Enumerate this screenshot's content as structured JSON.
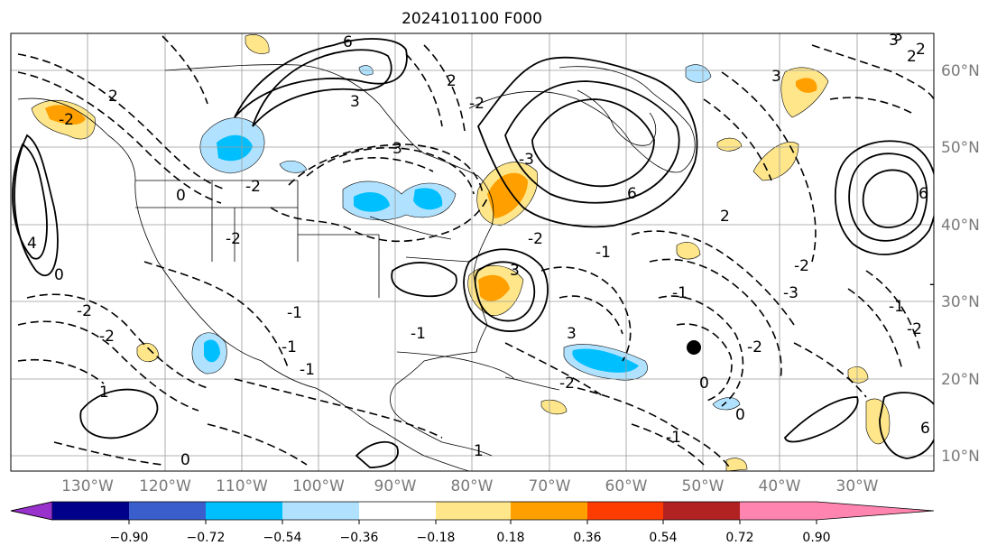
{
  "title": "2024101100 F000",
  "map": {
    "lat_labels": [
      "60°N",
      "50°N",
      "40°N",
      "30°N",
      "20°N",
      "10°N"
    ],
    "lon_labels": [
      "130°W",
      "120°W",
      "110°W",
      "100°W",
      "90°W",
      "80°W",
      "70°W",
      "60°W",
      "50°W",
      "40°W",
      "30°W"
    ],
    "contour_labels": [
      "6",
      "6",
      "2",
      "3",
      "3",
      "4",
      "-2",
      "0",
      "3",
      "-2",
      "-1",
      "-2",
      "2",
      "-2",
      "2",
      "-2",
      "-1",
      "0",
      "1",
      "-2",
      "-2",
      "0",
      "2",
      "3",
      "-2",
      "-3",
      "-1",
      "-2",
      "1",
      "6",
      "3",
      "-3",
      "-1",
      "3",
      "6",
      "2",
      "3",
      "-2",
      "-1",
      "-2",
      "-1",
      "0",
      "-1",
      "-2",
      "-1",
      "0"
    ]
  },
  "colorbar": {
    "ticks": [
      "−0.90",
      "−0.72",
      "−0.54",
      "−0.36",
      "−0.18",
      "0.18",
      "0.36",
      "0.54",
      "0.72",
      "0.90"
    ],
    "colors": [
      "#9932cc",
      "#00008b",
      "#3a5fcd",
      "#00bfff",
      "#b0e2ff",
      "#ffffff",
      "#ffe68a",
      "#ffa000",
      "#ff3c00",
      "#b22222",
      "#ff85b0"
    ]
  }
}
